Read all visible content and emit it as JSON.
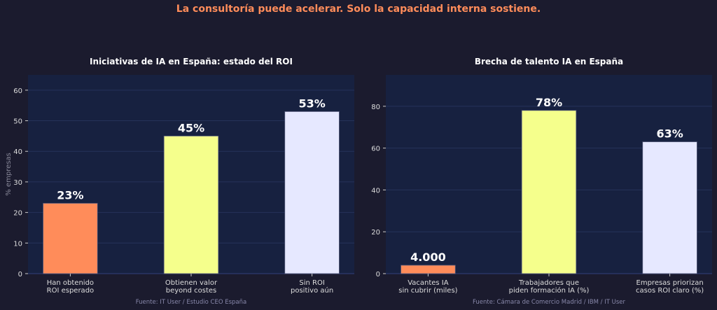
{
  "suptitle": "La consultoría puede acelerar. Solo la capacidad interna sostiene.",
  "colors": {
    "background": "#1b1b2e",
    "plot_bg": "#172140",
    "grid": "#26325a",
    "title": "#ff8c5a",
    "bar1": "#ff8c5a",
    "bar2": "#f5ff8c",
    "bar3": "#e6e8ff"
  },
  "chart_data": [
    {
      "type": "bar",
      "title": "Iniciativas de IA en España: estado del ROI",
      "ylabel": "% empresas",
      "xlabel": "",
      "categories": [
        "Han obtenido\nROI esperado",
        "Obtienen valor\nbeyond costes",
        "Sin ROI\npositivo aún"
      ],
      "values": [
        23,
        45,
        53
      ],
      "data_labels": [
        "23%",
        "45%",
        "53%"
      ],
      "ylim": [
        0,
        65
      ],
      "yticks": [
        0,
        10,
        20,
        30,
        40,
        50,
        60
      ],
      "grid": true,
      "source": "Fuente: IT User / Estudio CEO España"
    },
    {
      "type": "bar",
      "title": "Brecha de talento IA en España",
      "ylabel": "",
      "xlabel": "",
      "categories": [
        "Vacantes IA\nsin cubrir (miles)",
        "Trabajadores que\npiden formación IA (%)",
        "Empresas priorizan\ncasos ROI claro (%)"
      ],
      "values": [
        4,
        78,
        63
      ],
      "data_labels": [
        "4.000",
        "78%",
        "63%"
      ],
      "ylim": [
        0,
        95
      ],
      "yticks": [
        0,
        20,
        40,
        60,
        80
      ],
      "grid": true,
      "source": "Fuente: Cámara de Comercio Madrid / IBM / IT User"
    }
  ]
}
